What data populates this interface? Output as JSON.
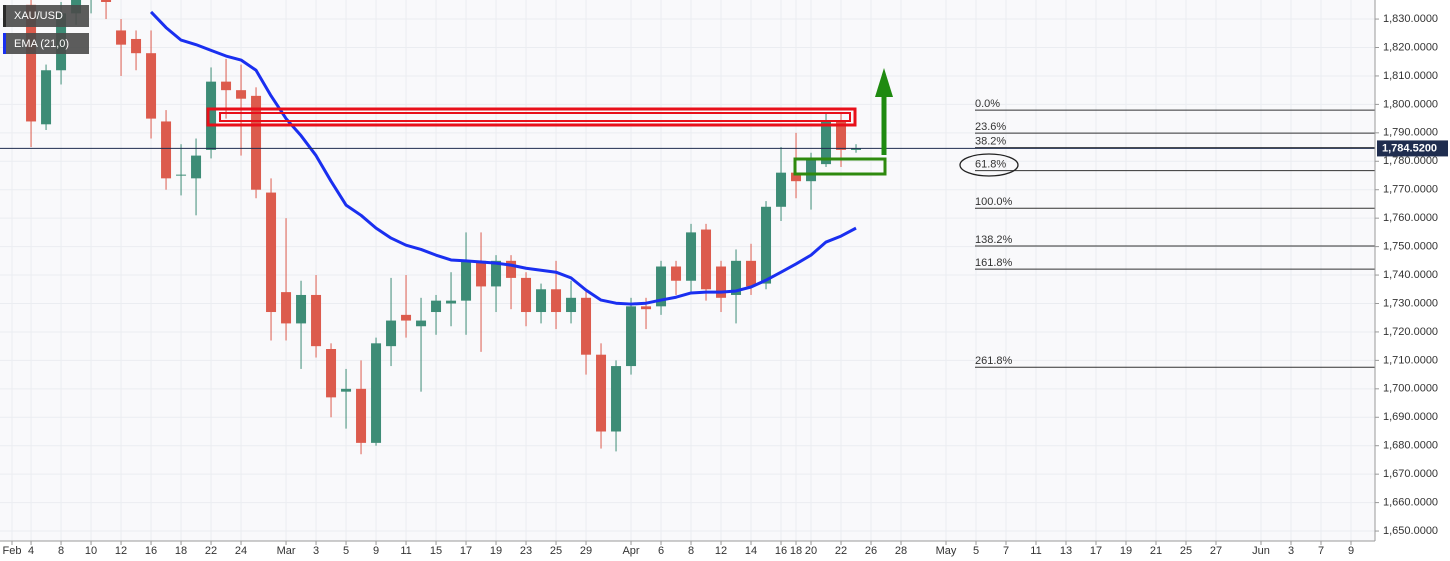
{
  "chart_data": {
    "type": "candlestick",
    "title": "XAU/USD",
    "up_color": "#3d8c76",
    "down_color": "#dc5b4d",
    "grid": true,
    "x": [
      3,
      4,
      5,
      6,
      7,
      8,
      9,
      10,
      11,
      12,
      13,
      14,
      15,
      16,
      17,
      18,
      19,
      20,
      21,
      22,
      23,
      24,
      25,
      26,
      27,
      28,
      29,
      30,
      31,
      32,
      33,
      34,
      35,
      36,
      37,
      38,
      39,
      40,
      41,
      42,
      43,
      44,
      45,
      46,
      47,
      48,
      49,
      50,
      51,
      52,
      53,
      54,
      55,
      56,
      57,
      58
    ],
    "open": [
      1835,
      1793,
      1812,
      1832,
      1838,
      1843,
      1826,
      1823,
      1818,
      1794,
      1775,
      1774,
      1784,
      1808,
      1805,
      1803,
      1769,
      1734,
      1723,
      1733,
      1714,
      1699,
      1700,
      1681,
      1715,
      1726,
      1722,
      1727,
      1730,
      1731,
      1745,
      1736,
      1745,
      1739,
      1727,
      1735,
      1727,
      1732,
      1712,
      1685,
      1708,
      1729,
      1729,
      1743,
      1738,
      1756,
      1743,
      1733,
      1745,
      1737,
      1764,
      1776,
      1773,
      1779,
      1794,
      1784
    ],
    "high": [
      1840,
      1814,
      1836,
      1845,
      1848,
      1848,
      1830,
      1826,
      1826,
      1798,
      1786,
      1788,
      1813,
      1816,
      1814,
      1806,
      1774,
      1760,
      1738,
      1740,
      1716,
      1707,
      1710,
      1718,
      1739,
      1740,
      1732,
      1733,
      1741,
      1755,
      1755,
      1747,
      1747,
      1741,
      1737,
      1745,
      1738,
      1735,
      1716,
      1710,
      1732,
      1732,
      1745,
      1745,
      1758,
      1758,
      1745,
      1749,
      1751,
      1766,
      1785,
      1790,
      1783,
      1797,
      1797,
      1786
    ],
    "low": [
      1785,
      1791,
      1807,
      1828,
      1832,
      1830,
      1810,
      1812,
      1788,
      1770,
      1768,
      1761,
      1781,
      1795,
      1782,
      1767,
      1717,
      1717,
      1707,
      1711,
      1690,
      1686,
      1677,
      1680,
      1708,
      1718,
      1699,
      1719,
      1722,
      1719,
      1713,
      1727,
      1728,
      1722,
      1723,
      1721,
      1723,
      1705,
      1679,
      1678,
      1705,
      1721,
      1726,
      1733,
      1734,
      1731,
      1727,
      1723,
      1733,
      1735,
      1759,
      1767,
      1763,
      1778,
      1778,
      1783
    ],
    "close": [
      1794,
      1812,
      1832,
      1840,
      1842,
      1836,
      1821,
      1818,
      1795,
      1774,
      1775.3,
      1782,
      1808,
      1805,
      1802,
      1770,
      1727,
      1723,
      1733,
      1715,
      1697,
      1700,
      1681,
      1716,
      1724,
      1724,
      1724,
      1731,
      1731,
      1745,
      1736,
      1745,
      1739,
      1727,
      1735,
      1727,
      1732,
      1712,
      1685,
      1708,
      1729,
      1728,
      1743,
      1738,
      1755,
      1735,
      1732,
      1745,
      1736,
      1764,
      1776,
      1773,
      1781,
      1794,
      1784,
      1784.52
    ],
    "ema": {
      "name": "EMA (21,0)",
      "color": "#1a2ff0",
      "x": [
        11,
        12,
        13,
        14,
        15,
        16,
        17,
        18,
        19,
        20,
        21,
        22,
        23,
        24,
        25,
        26,
        27,
        28,
        29,
        30,
        31,
        32,
        33,
        34,
        35,
        36,
        37,
        38,
        39,
        40,
        41,
        42,
        43,
        44,
        45,
        46,
        47,
        48,
        49,
        50,
        51,
        52,
        53,
        54,
        55,
        56,
        57,
        58
      ],
      "values": [
        1832.5,
        1827,
        1822.6,
        1821,
        1819,
        1817,
        1815.6,
        1812,
        1803,
        1795,
        1789,
        1782,
        1773,
        1764.6,
        1761,
        1756.5,
        1753,
        1750.5,
        1749,
        1747,
        1745.3,
        1745,
        1744.6,
        1744.2,
        1743.5,
        1742.4,
        1741.7,
        1741,
        1739,
        1734.7,
        1731.2,
        1730.1,
        1729.8,
        1730.1,
        1731.2,
        1732.2,
        1733.7,
        1734,
        1734,
        1734.4,
        1735.8,
        1738.2,
        1741,
        1743.9,
        1747,
        1751.6,
        1753.7,
        1756.5
      ]
    },
    "last_price": {
      "value": 1784.52,
      "label": "1,784.5200"
    },
    "fib_levels": [
      {
        "label": "0.0%",
        "price": 1798
      },
      {
        "label": "23.6%",
        "price": 1789.9
      },
      {
        "label": "38.2%",
        "price": 1784.8
      },
      {
        "label": "61.8%",
        "price": 1776.7
      },
      {
        "label": "100.0%",
        "price": 1763.5
      },
      {
        "label": "138.2%",
        "price": 1750.2
      },
      {
        "label": "161.8%",
        "price": 1742.1
      },
      {
        "label": "261.8%",
        "price": 1707.6
      }
    ],
    "xlim": [
      0.93,
      92.6
    ],
    "ylim": [
      1646.5,
      1836.7
    ],
    "xticks": [
      {
        "value": 1.73,
        "label": "Feb"
      },
      {
        "value": 3,
        "label": "4"
      },
      {
        "value": 5,
        "label": "8"
      },
      {
        "value": 7,
        "label": "10"
      },
      {
        "value": 9,
        "label": "12"
      },
      {
        "value": 11,
        "label": "16"
      },
      {
        "value": 13,
        "label": "18"
      },
      {
        "value": 15,
        "label": "22"
      },
      {
        "value": 17,
        "label": "24"
      },
      {
        "value": 20,
        "label": "Mar"
      },
      {
        "value": 22,
        "label": "3"
      },
      {
        "value": 24,
        "label": "5"
      },
      {
        "value": 26,
        "label": "9"
      },
      {
        "value": 28,
        "label": "11"
      },
      {
        "value": 30,
        "label": "15"
      },
      {
        "value": 32,
        "label": "17"
      },
      {
        "value": 34,
        "label": "19"
      },
      {
        "value": 36,
        "label": "23"
      },
      {
        "value": 38,
        "label": "25"
      },
      {
        "value": 40,
        "label": "29"
      },
      {
        "value": 43,
        "label": "Apr"
      },
      {
        "value": 45,
        "label": "6"
      },
      {
        "value": 47,
        "label": "8"
      },
      {
        "value": 49,
        "label": "12"
      },
      {
        "value": 51,
        "label": "14"
      },
      {
        "value": 53,
        "label": "16"
      },
      {
        "value": 54,
        "label": "18"
      },
      {
        "value": 55,
        "label": "20"
      },
      {
        "value": 57,
        "label": "22"
      },
      {
        "value": 59,
        "label": "26"
      },
      {
        "value": 61,
        "label": "28"
      },
      {
        "value": 64,
        "label": "May"
      },
      {
        "value": 66,
        "label": "5"
      },
      {
        "value": 68,
        "label": "7"
      },
      {
        "value": 70,
        "label": "11"
      },
      {
        "value": 72,
        "label": "13"
      },
      {
        "value": 74,
        "label": "17"
      },
      {
        "value": 76,
        "label": "19"
      },
      {
        "value": 78,
        "label": "21"
      },
      {
        "value": 80,
        "label": "25"
      },
      {
        "value": 82,
        "label": "27"
      },
      {
        "value": 85,
        "label": "Jun"
      },
      {
        "value": 87,
        "label": "3"
      },
      {
        "value": 89,
        "label": "7"
      },
      {
        "value": 91,
        "label": "9"
      }
    ],
    "yticks": [
      {
        "value": 1830,
        "label": "1,830.0000"
      },
      {
        "value": 1820,
        "label": "1,820.0000"
      },
      {
        "value": 1810,
        "label": "1,810.0000"
      },
      {
        "value": 1800,
        "label": "1,800.0000"
      },
      {
        "value": 1790,
        "label": "1,790.0000"
      },
      {
        "value": 1780,
        "label": "1,780.0000"
      },
      {
        "value": 1770,
        "label": "1,770.0000"
      },
      {
        "value": 1760,
        "label": "1,760.0000"
      },
      {
        "value": 1750,
        "label": "1,750.0000"
      },
      {
        "value": 1740,
        "label": "1,740.0000"
      },
      {
        "value": 1730,
        "label": "1,730.0000"
      },
      {
        "value": 1720,
        "label": "1,720.0000"
      },
      {
        "value": 1710,
        "label": "1,710.0000"
      },
      {
        "value": 1700,
        "label": "1,700.0000"
      },
      {
        "value": 1690,
        "label": "1,690.0000"
      },
      {
        "value": 1680,
        "label": "1,680.0000"
      },
      {
        "value": 1670,
        "label": "1,670.0000"
      },
      {
        "value": 1660,
        "label": "1,660.0000"
      },
      {
        "value": 1650,
        "label": "1,650.0000"
      }
    ]
  }
}
